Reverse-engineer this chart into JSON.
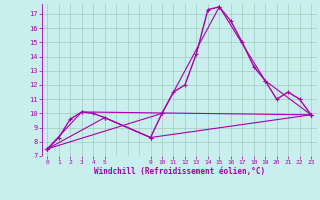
{
  "background_color": "#c8eeed",
  "grid_color": "#a0ccbb",
  "line_color": "#aa00aa",
  "xlim": [
    -0.5,
    23.5
  ],
  "ylim": [
    7,
    17.7
  ],
  "yticks": [
    7,
    8,
    9,
    10,
    11,
    12,
    13,
    14,
    15,
    16,
    17
  ],
  "xtick_positions": [
    0,
    1,
    2,
    3,
    4,
    5,
    9,
    10,
    11,
    12,
    13,
    14,
    15,
    16,
    17,
    18,
    19,
    20,
    21,
    22,
    23
  ],
  "xtick_labels": [
    "0",
    "1",
    "2",
    "3",
    "4",
    "5",
    "9",
    "10",
    "11",
    "12",
    "13",
    "14",
    "15",
    "16",
    "17",
    "18",
    "19",
    "20",
    "21",
    "22",
    "23"
  ],
  "xlabel": "Windchill (Refroidissement éolien,°C)",
  "series_main": [
    [
      0,
      7.5
    ],
    [
      1,
      8.3
    ],
    [
      2,
      9.6
    ],
    [
      3,
      10.1
    ],
    [
      4,
      10.0
    ],
    [
      5,
      9.7
    ],
    [
      9,
      8.3
    ],
    [
      10,
      10.0
    ],
    [
      11,
      11.5
    ],
    [
      12,
      12.0
    ],
    [
      13,
      14.2
    ],
    [
      14,
      17.3
    ],
    [
      15,
      17.5
    ],
    [
      16,
      16.5
    ],
    [
      17,
      15.0
    ],
    [
      18,
      13.3
    ],
    [
      19,
      12.3
    ],
    [
      20,
      11.0
    ],
    [
      21,
      11.5
    ],
    [
      22,
      11.0
    ],
    [
      23,
      9.9
    ]
  ],
  "series2": [
    [
      0,
      7.5
    ],
    [
      3,
      10.1
    ],
    [
      23,
      9.9
    ]
  ],
  "series3": [
    [
      0,
      7.5
    ],
    [
      5,
      9.7
    ],
    [
      9,
      8.3
    ],
    [
      23,
      9.9
    ]
  ],
  "series4": [
    [
      0,
      7.5
    ],
    [
      10,
      10.0
    ],
    [
      15,
      17.5
    ],
    [
      19,
      12.3
    ],
    [
      23,
      9.9
    ]
  ]
}
